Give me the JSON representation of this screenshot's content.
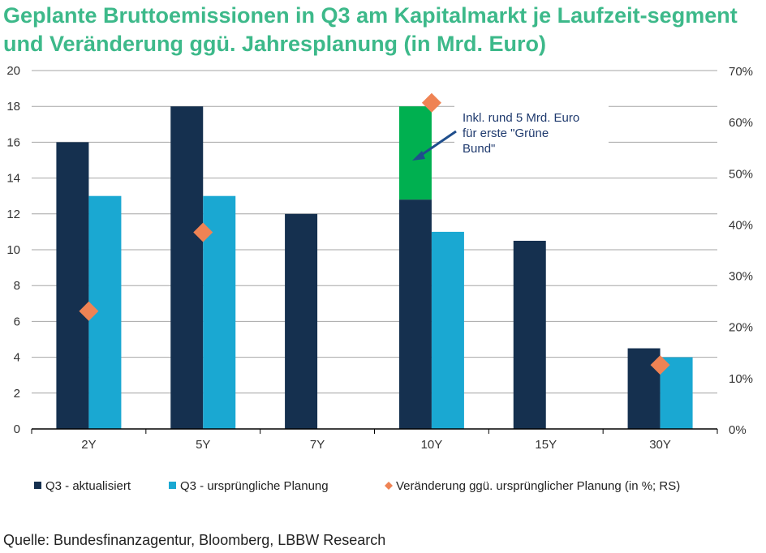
{
  "title": "Geplante Bruttoemissionen in Q3 am Kapitalmarkt je Laufzeit-segment und Veränderung ggü. Jahresplanung (in Mrd. Euro)",
  "source": "Quelle: Bundesfinanzagentur, Bloomberg, LBBW Research",
  "chart_data": {
    "type": "bar",
    "categories": [
      "2Y",
      "5Y",
      "7Y",
      "10Y",
      "15Y",
      "30Y"
    ],
    "series": [
      {
        "name": "Q3 - aktualisiert",
        "values": [
          16,
          18,
          12,
          12.8,
          10.5,
          4.5
        ],
        "color": "#15304f",
        "axis": "left"
      },
      {
        "name": "Grüne Bund (Zusatz)",
        "values": [
          0,
          0,
          0,
          5.2,
          0,
          0
        ],
        "color": "#00b050",
        "axis": "left",
        "stacked_on": "Q3 - aktualisiert"
      },
      {
        "name": "Q3  - ursprüngliche Planung",
        "values": [
          13,
          13,
          null,
          11,
          null,
          4
        ],
        "color": "#1aa8d2",
        "axis": "left"
      },
      {
        "name": "Veränderung ggü. ursprünglicher Planung (in %; RS)",
        "values": [
          23,
          38.4,
          null,
          63.7,
          null,
          12.5
        ],
        "color": "#ef8354",
        "axis": "right",
        "marker": "diamond"
      }
    ],
    "legend_entries": [
      "Q3 - aktualisiert",
      "Q3  - ursprüngliche Planung",
      "Veränderung ggü. ursprünglicher Planung (in %; RS)"
    ],
    "ylim": [
      0,
      20
    ],
    "yticks": [
      "0",
      "2",
      "4",
      "6",
      "8",
      "10",
      "12",
      "14",
      "16",
      "18",
      "20"
    ],
    "y2lim": [
      0,
      70
    ],
    "y2ticks": [
      "0%",
      "10%",
      "20%",
      "30%",
      "40%",
      "50%",
      "60%",
      "70%"
    ],
    "grid": true,
    "legend_position": "bottom",
    "annotation": [
      "Inkl. rund 5 Mrd. Euro",
      "für erste \"Grüne",
      "Bund\""
    ]
  }
}
